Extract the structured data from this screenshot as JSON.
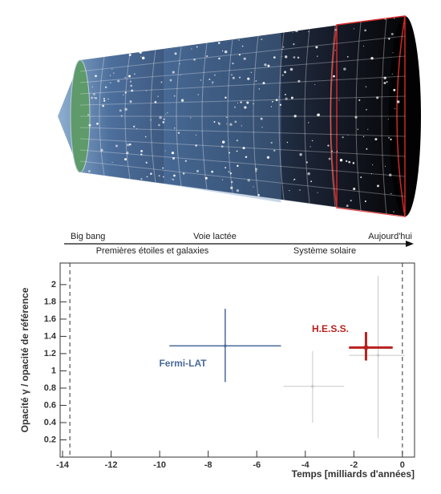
{
  "timeline": {
    "above": [
      "Big bang",
      "Voie lactée",
      "Aujourd'hui"
    ],
    "below": [
      "Premières étoiles et galaxies",
      "Système solaire"
    ]
  },
  "chart_data": {
    "type": "errorbar",
    "xlabel": "Temps [milliards d'années]",
    "ylabel": "Opacité γ / opacité de référence",
    "xlim": [
      -14.1,
      0.5
    ],
    "xticks": [
      -14,
      -12,
      -10,
      -8,
      -6,
      -4,
      -2,
      0
    ],
    "ylim": [
      0,
      2.25
    ],
    "yticks": [
      0.2,
      0.4,
      0.6,
      0.8,
      1,
      1.2,
      1.4,
      1.6,
      1.8,
      2
    ],
    "reference_lines_x": [
      -13.7,
      0
    ],
    "series": [
      {
        "name": "Fermi-LAT",
        "color": "#4a6a9a",
        "x": -7.3,
        "y": 1.29,
        "x_low": -9.6,
        "x_high": -5.0,
        "y_low": 0.87,
        "y_high": 1.72
      },
      {
        "color": "#c8c8c8",
        "x": -3.7,
        "y": 0.82,
        "x_low": -4.9,
        "x_high": -2.4,
        "y_low": 0.4,
        "y_high": 1.23
      },
      {
        "color": "#c8c8c8",
        "x": -1.0,
        "y": 1.18,
        "x_low": -2.2,
        "x_high": 0.1,
        "y_low": 0.22,
        "y_high": 2.1
      },
      {
        "name": "H.E.S.S.",
        "color": "#b8211d",
        "x": -1.5,
        "y": 1.27,
        "x_low": -2.2,
        "x_high": -0.4,
        "y_low": 1.12,
        "y_high": 1.45
      }
    ]
  }
}
